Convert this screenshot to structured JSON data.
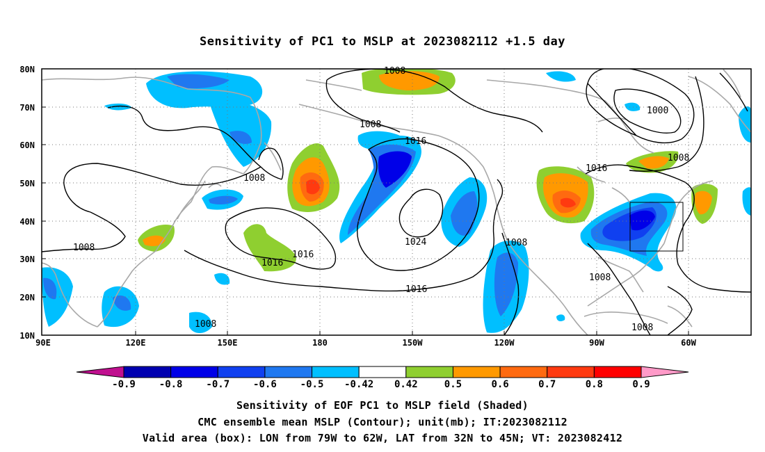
{
  "title": "Sensitivity of PC1 to MSLP at 2023082112 +1.5 day",
  "map": {
    "lat_labels": [
      "80N",
      "70N",
      "60N",
      "50N",
      "40N",
      "30N",
      "20N",
      "10N"
    ],
    "lon_labels": [
      "90E",
      "120E",
      "150E",
      "180",
      "150W",
      "120W",
      "90W",
      "60W"
    ],
    "contour_labels": [
      "1008",
      "1008",
      "1008",
      "1000",
      "1008",
      "1016",
      "1016",
      "1016",
      "1016",
      "1016",
      "1024",
      "1008",
      "1008",
      "1008",
      "1008",
      "1008"
    ],
    "box": {
      "lon_from": "79W",
      "lon_to": "62W",
      "lat_from": "32N",
      "lat_to": "45N"
    }
  },
  "colorbar": {
    "labels": [
      "-0.9",
      "-0.8",
      "-0.7",
      "-0.6",
      "-0.5",
      "-0.42",
      "0.42",
      "0.5",
      "0.6",
      "0.7",
      "0.8",
      "0.9"
    ],
    "colors": [
      "#0000b0",
      "#0000e8",
      "#1040f0",
      "#1f78f0",
      "#00bfff",
      "#ffffff",
      "#8fcf30",
      "#ff9900",
      "#ff6a10",
      "#ff3a10",
      "#ff0000"
    ],
    "low_extend_color": "#c0108f",
    "high_extend_color": "#ff9ac8"
  },
  "captions": {
    "line1": "Sensitivity of EOF PC1 to MSLP field (Shaded)",
    "line2": "CMC ensemble mean MSLP (Contour); unit(mb); IT:2023082112",
    "line3": "Valid area (box): LON from 79W to 62W, LAT from 32N to 45N; VT: 2023082412"
  }
}
